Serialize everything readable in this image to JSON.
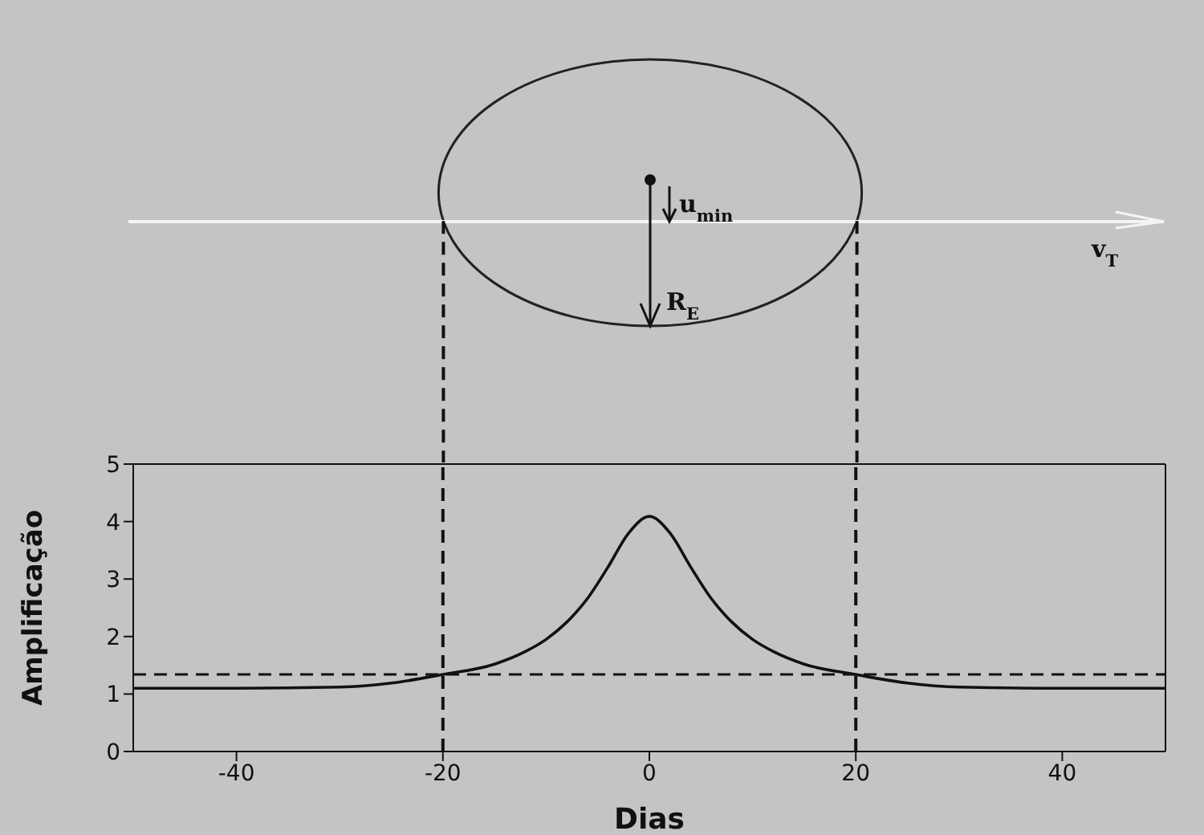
{
  "chart_data": {
    "type": "line",
    "xlabel": "Dias",
    "ylabel": "Amplificação",
    "x": [
      -50,
      -40,
      -30,
      -25,
      -20,
      -15,
      -12,
      -10,
      -8,
      -6,
      -4,
      -2,
      0,
      2,
      4,
      6,
      8,
      10,
      12,
      15,
      20,
      25,
      30,
      40,
      50
    ],
    "series": [
      {
        "color": "#111111",
        "values": [
          1.1,
          1.1,
          1.12,
          1.19,
          1.34,
          1.52,
          1.74,
          1.95,
          2.25,
          2.66,
          3.21,
          3.8,
          4.09,
          3.8,
          3.21,
          2.66,
          2.25,
          1.95,
          1.74,
          1.52,
          1.34,
          1.19,
          1.12,
          1.1,
          1.1
        ]
      }
    ],
    "xlim": [
      -50,
      50
    ],
    "xticks": [
      -40,
      -20,
      0,
      20,
      40
    ],
    "ylim": [
      0,
      5
    ],
    "yticks": [
      0,
      1,
      2,
      3,
      4,
      5
    ],
    "grid": false,
    "marker": "none",
    "line_style": "solid",
    "ref_lines": [
      {
        "axis": "y",
        "value": 1.34,
        "line_style": "dashed"
      },
      {
        "axis": "x",
        "value": -20,
        "line_style": "dashed"
      },
      {
        "axis": "x",
        "value": 20,
        "line_style": "dashed"
      }
    ],
    "annotations": [
      "u$_{min}$",
      "R$_{E}$",
      "v$_{T}$"
    ]
  }
}
